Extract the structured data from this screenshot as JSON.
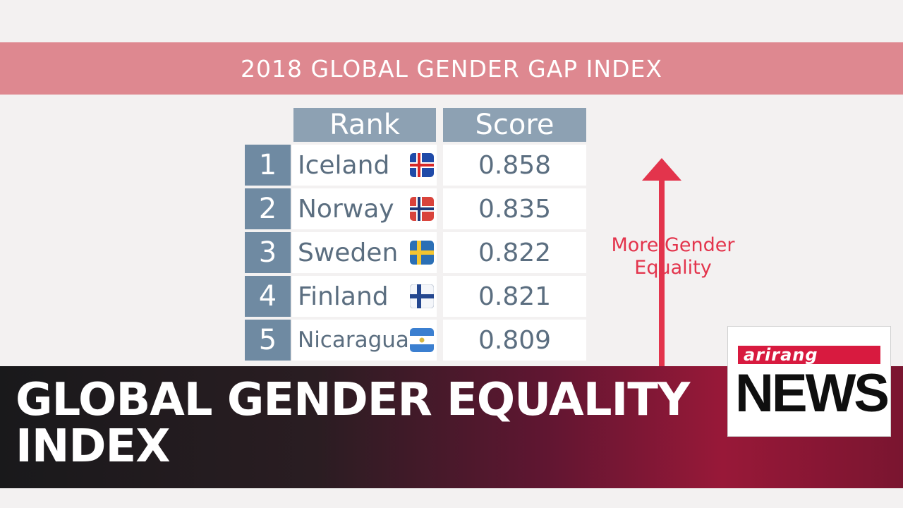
{
  "banner": {
    "title": "2018 GLOBAL GENDER GAP INDEX"
  },
  "table": {
    "rank_header": "Rank",
    "score_header": "Score",
    "rows": [
      {
        "rank": "1",
        "country": "Iceland",
        "score": "0.858",
        "flag": "iceland-flag-icon"
      },
      {
        "rank": "2",
        "country": "Norway",
        "score": "0.835",
        "flag": "norway-flag-icon"
      },
      {
        "rank": "3",
        "country": "Sweden",
        "score": "0.822",
        "flag": "sweden-flag-icon"
      },
      {
        "rank": "4",
        "country": "Finland",
        "score": "0.821",
        "flag": "finland-flag-icon"
      },
      {
        "rank": "5",
        "country": "Nicaragua",
        "score": "0.809",
        "flag": "nicaragua-flag-icon"
      }
    ]
  },
  "arrow": {
    "label_line1": "More Gender",
    "label_line2": "Equality",
    "color": "#e3344c"
  },
  "headline": {
    "line1": "GLOBAL GENDER EQUALITY",
    "line2": "INDEX"
  },
  "logo": {
    "brand": "arirang",
    "news": "NEWS",
    "brand_color": "#d81a3f"
  },
  "colors": {
    "banner": "#de8890",
    "table_header": "#8da1b3",
    "rank_cell": "#6f8aa2",
    "table_text": "#5b6e80"
  }
}
